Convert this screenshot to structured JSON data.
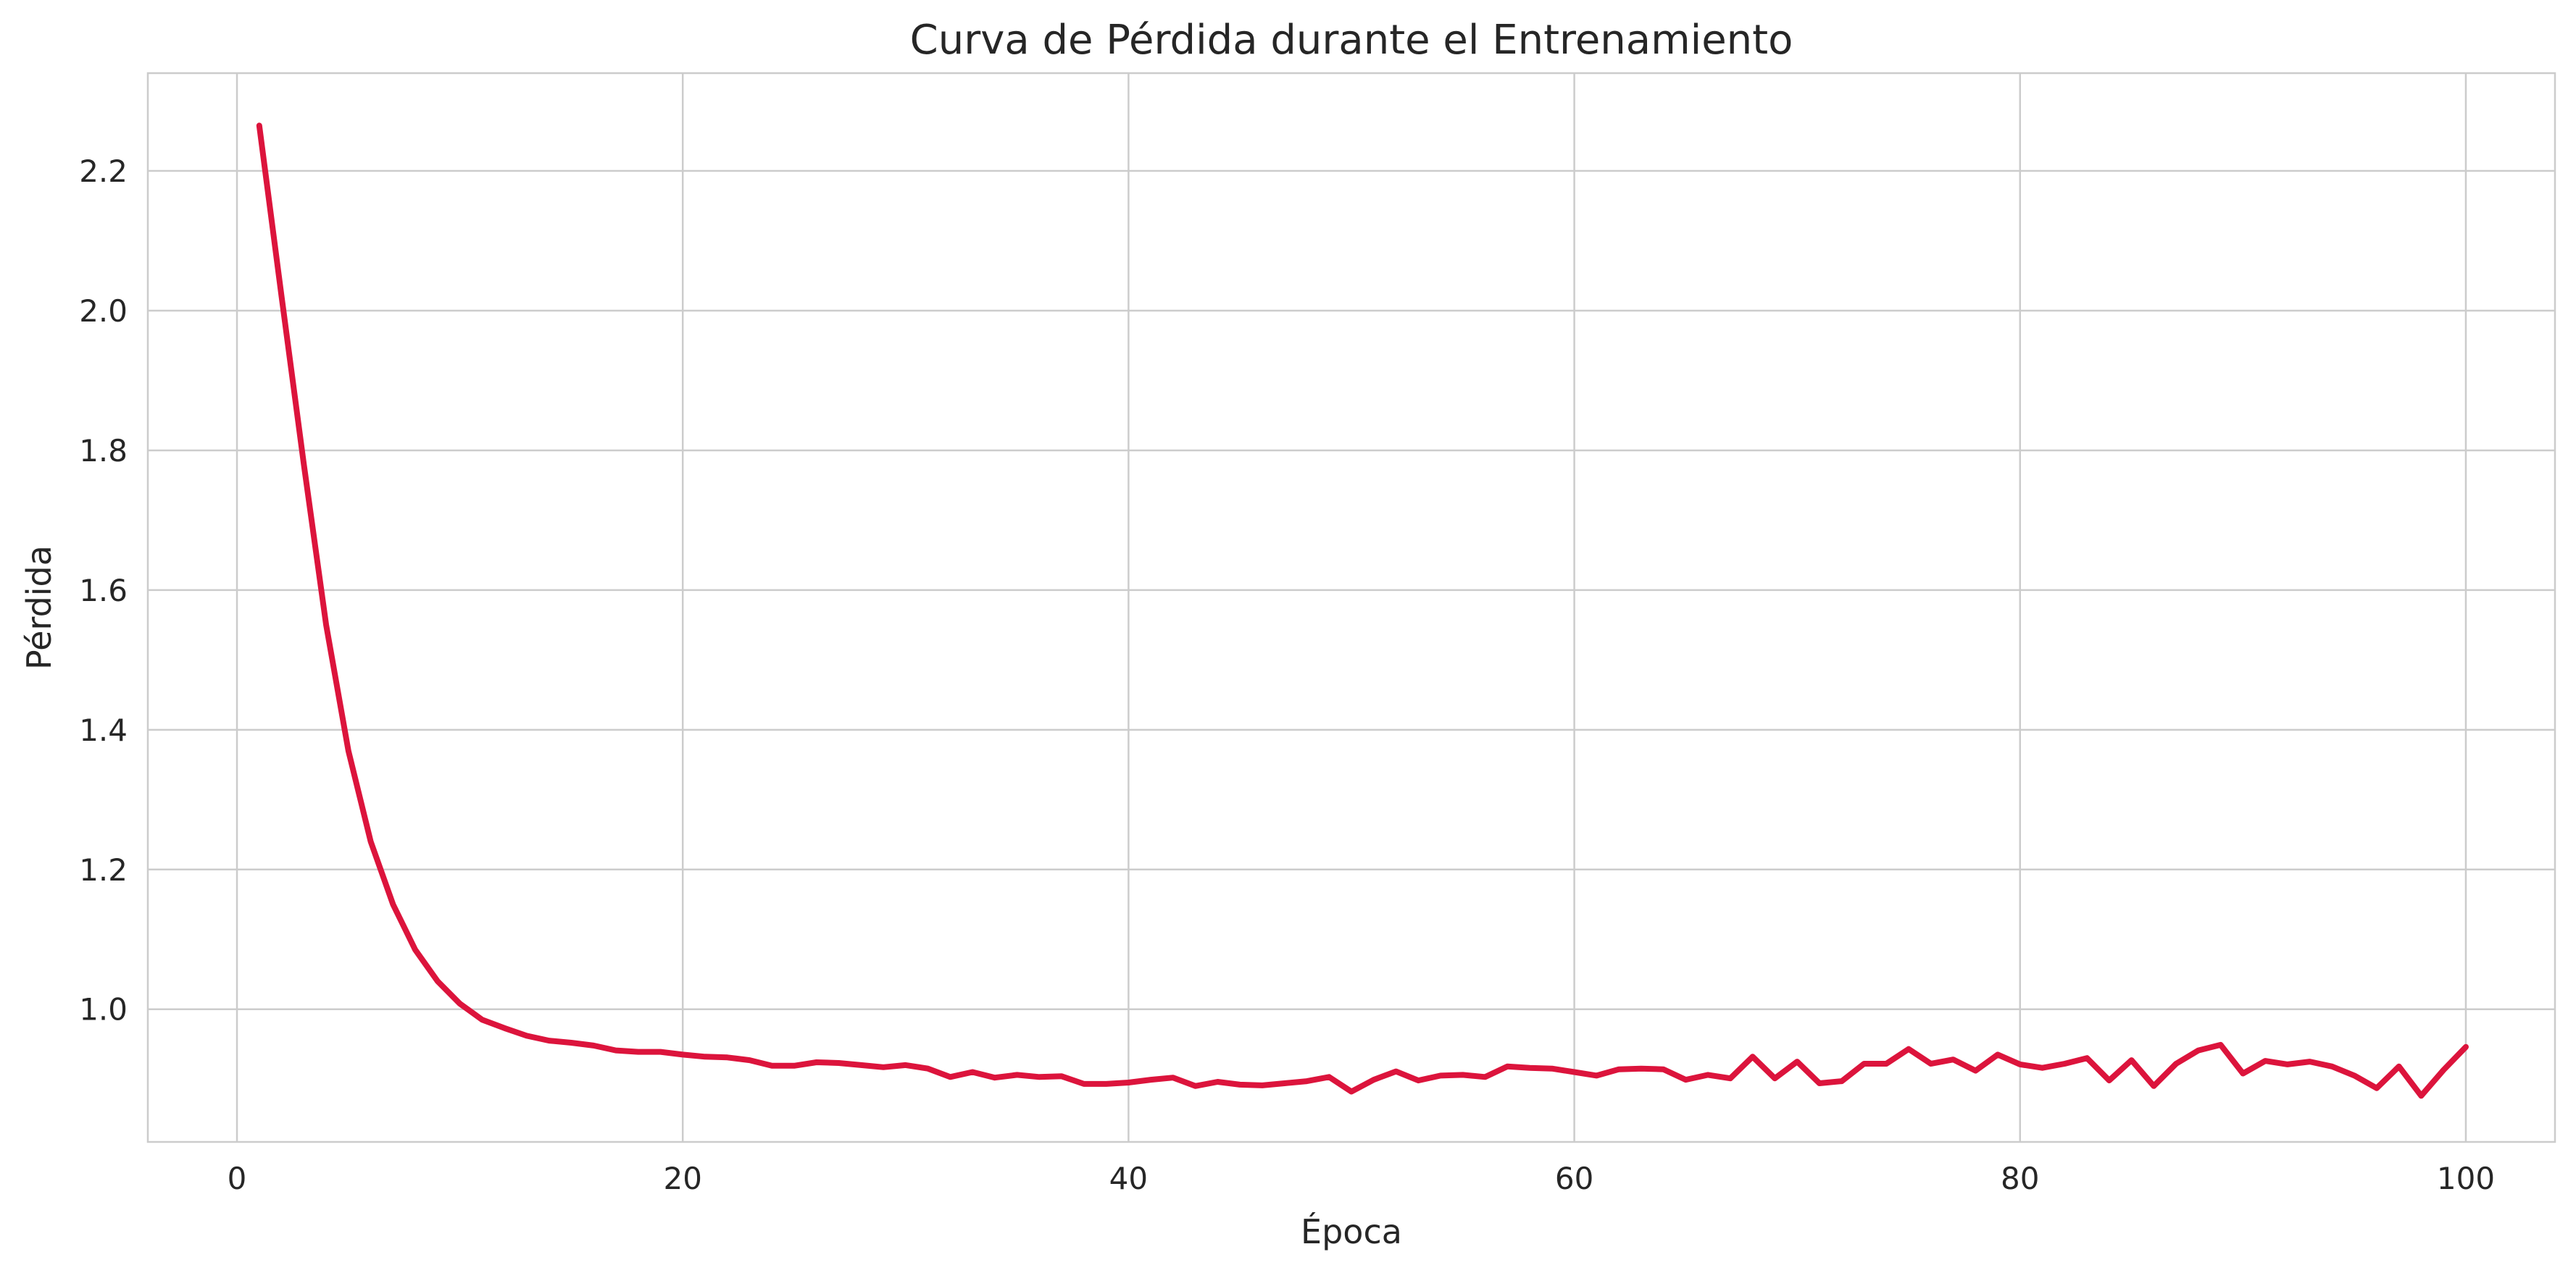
{
  "chart_data": {
    "type": "line",
    "title": "Curva de Pérdida durante el Entrenamiento",
    "xlabel": "Época",
    "ylabel": "Pérdida",
    "xlim": [
      -4,
      104
    ],
    "ylim": [
      0.81,
      2.34
    ],
    "xticks": [
      0,
      20,
      40,
      60,
      80,
      100
    ],
    "yticks": [
      1.0,
      1.2,
      1.4,
      1.6,
      1.8,
      2.0,
      2.2
    ],
    "ytick_labels": [
      "1.0",
      "1.2",
      "1.4",
      "1.6",
      "1.8",
      "2.0",
      "2.2"
    ],
    "grid": true,
    "legend": "none",
    "line_color": "#dc143c",
    "series": [
      {
        "x": [
          1,
          2,
          3,
          4,
          5,
          6,
          7,
          8,
          9,
          10,
          11,
          12,
          13,
          14,
          15,
          16,
          17,
          18,
          19,
          20,
          21,
          22,
          23,
          24,
          25,
          26,
          27,
          28,
          29,
          30,
          31,
          32,
          33,
          34,
          35,
          36,
          37,
          38,
          39,
          40,
          41,
          42,
          43,
          44,
          45,
          46,
          47,
          48,
          49,
          50,
          51,
          52,
          53,
          54,
          55,
          56,
          57,
          58,
          59,
          60,
          61,
          62,
          63,
          64,
          65,
          66,
          67,
          68,
          69,
          70,
          71,
          72,
          73,
          74,
          75,
          76,
          77,
          78,
          79,
          80,
          81,
          82,
          83,
          84,
          85,
          86,
          87,
          88,
          89,
          90,
          91,
          92,
          93,
          94,
          95,
          96,
          97,
          98,
          99,
          100
        ],
        "values": [
          2.265,
          2.02,
          1.78,
          1.55,
          1.37,
          1.24,
          1.15,
          1.085,
          1.04,
          1.008,
          0.985,
          0.973,
          0.962,
          0.955,
          0.952,
          0.948,
          0.941,
          0.939,
          0.939,
          0.935,
          0.932,
          0.931,
          0.927,
          0.919,
          0.919,
          0.924,
          0.923,
          0.92,
          0.917,
          0.92,
          0.915,
          0.903,
          0.91,
          0.902,
          0.906,
          0.903,
          0.904,
          0.893,
          0.893,
          0.895,
          0.899,
          0.902,
          0.89,
          0.896,
          0.892,
          0.891,
          0.894,
          0.897,
          0.903,
          0.882,
          0.899,
          0.911,
          0.898,
          0.905,
          0.906,
          0.903,
          0.918,
          0.916,
          0.915,
          0.91,
          0.905,
          0.914,
          0.915,
          0.914,
          0.899,
          0.906,
          0.901,
          0.932,
          0.901,
          0.925,
          0.894,
          0.897,
          0.922,
          0.922,
          0.943,
          0.922,
          0.928,
          0.912,
          0.935,
          0.921,
          0.916,
          0.922,
          0.93,
          0.898,
          0.927,
          0.89,
          0.922,
          0.941,
          0.949,
          0.908,
          0.926,
          0.921,
          0.925,
          0.918,
          0.905,
          0.887,
          0.918,
          0.876,
          0.913,
          0.946
        ]
      }
    ]
  }
}
